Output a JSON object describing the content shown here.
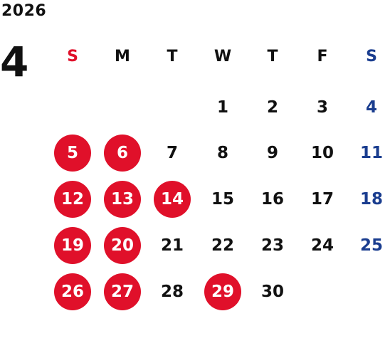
{
  "calendar": {
    "year": "2026",
    "month": "4",
    "colors": {
      "holiday_bg": "#e0102a",
      "sunday_header": "#e0102a",
      "saturday": "#1a3d8f",
      "text": "#111111"
    },
    "weekdays": [
      "S",
      "M",
      "T",
      "W",
      "T",
      "F",
      "S"
    ],
    "weeks": [
      [
        null,
        null,
        null,
        {
          "n": "1"
        },
        {
          "n": "2"
        },
        {
          "n": "3"
        },
        {
          "n": "4",
          "type": "sat"
        }
      ],
      [
        {
          "n": "5",
          "type": "holiday"
        },
        {
          "n": "6",
          "type": "holiday"
        },
        {
          "n": "7"
        },
        {
          "n": "8"
        },
        {
          "n": "9"
        },
        {
          "n": "10"
        },
        {
          "n": "11",
          "type": "sat"
        }
      ],
      [
        {
          "n": "12",
          "type": "holiday"
        },
        {
          "n": "13",
          "type": "holiday"
        },
        {
          "n": "14",
          "type": "holiday"
        },
        {
          "n": "15"
        },
        {
          "n": "16"
        },
        {
          "n": "17"
        },
        {
          "n": "18",
          "type": "sat"
        }
      ],
      [
        {
          "n": "19",
          "type": "holiday"
        },
        {
          "n": "20",
          "type": "holiday"
        },
        {
          "n": "21"
        },
        {
          "n": "22"
        },
        {
          "n": "23"
        },
        {
          "n": "24"
        },
        {
          "n": "25",
          "type": "sat"
        }
      ],
      [
        {
          "n": "26",
          "type": "holiday"
        },
        {
          "n": "27",
          "type": "holiday"
        },
        {
          "n": "28"
        },
        {
          "n": "29",
          "type": "holiday"
        },
        {
          "n": "30"
        },
        null,
        null
      ]
    ]
  }
}
